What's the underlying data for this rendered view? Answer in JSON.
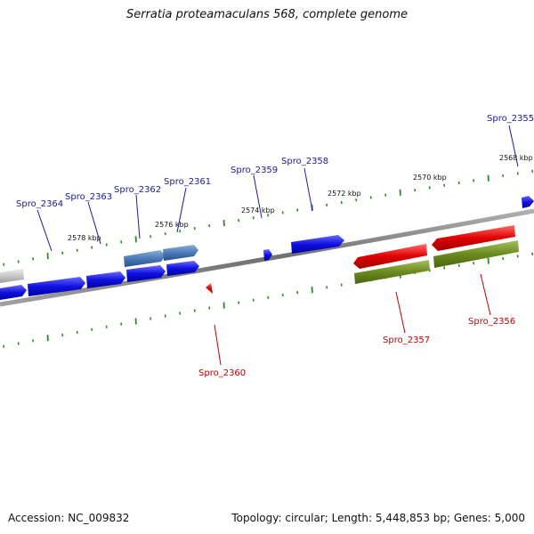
{
  "title": "Serratia proteamaculans 568, complete genome",
  "footer": {
    "accession": "Accession: NC_009832",
    "summary": "Topology: circular; Length: 5,448,853 bp; Genes: 5,000"
  },
  "colors": {
    "forward_gene": "#1010e0",
    "forward_gene_highlight": "#4a7ab8",
    "reverse_gene": "#e00000",
    "feature_green": "#6a8a1e",
    "backbone": "#808080",
    "tick_green": "#2a8a2a",
    "label_blue": "#1a1aa0",
    "label_red": "#c00000",
    "faded_gene": "#c8c8c8"
  },
  "scale_labels": [
    {
      "id": "kbp-2578",
      "text": "2578 kbp"
    },
    {
      "id": "kbp-2576",
      "text": "2576 kbp"
    },
    {
      "id": "kbp-2574",
      "text": "2574 kbp"
    },
    {
      "id": "kbp-2572",
      "text": "2572 kbp"
    },
    {
      "id": "kbp-2570",
      "text": "2570 kbp"
    },
    {
      "id": "kbp-2568",
      "text": "2568 kbp"
    }
  ],
  "genes": [
    {
      "id": "spro-2364",
      "label": "Spro_2364",
      "strand": "forward"
    },
    {
      "id": "spro-2363",
      "label": "Spro_2363",
      "strand": "forward"
    },
    {
      "id": "spro-2362",
      "label": "Spro_2362",
      "strand": "forward"
    },
    {
      "id": "spro-2361",
      "label": "Spro_2361",
      "strand": "forward"
    },
    {
      "id": "spro-2359",
      "label": "Spro_2359",
      "strand": "forward"
    },
    {
      "id": "spro-2358",
      "label": "Spro_2358",
      "strand": "forward"
    },
    {
      "id": "spro-2355",
      "label": "Spro_2355",
      "strand": "forward"
    },
    {
      "id": "spro-2360",
      "label": "Spro_2360",
      "strand": "reverse"
    },
    {
      "id": "spro-2357",
      "label": "Spro_2357",
      "strand": "reverse"
    },
    {
      "id": "spro-2356",
      "label": "Spro_2356",
      "strand": "reverse"
    }
  ]
}
